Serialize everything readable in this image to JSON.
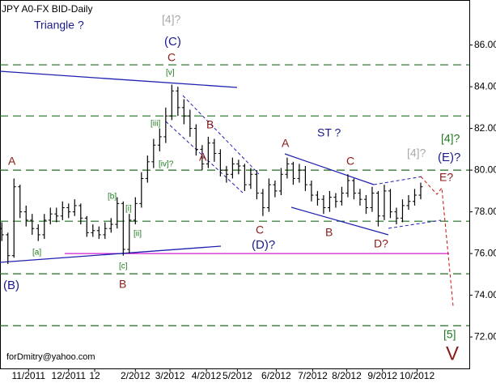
{
  "chart_data": {
    "type": "ohlc",
    "title": "JPY A0-FX BID-Daily",
    "footer": "forDmitry@yahoo.com",
    "color": "#000000",
    "xlim": [
      -0.3,
      77
    ],
    "ylim": [
      70.49,
      88.16
    ],
    "yticks": [
      {
        "value": 72,
        "label": "72.00"
      },
      {
        "value": 74,
        "label": "74.00"
      },
      {
        "value": 76,
        "label": "76.00"
      },
      {
        "value": 78,
        "label": "78.00"
      },
      {
        "value": 80,
        "label": "80.00"
      },
      {
        "value": 82,
        "label": "82.00"
      },
      {
        "value": 84,
        "label": "84.00"
      },
      {
        "value": 86,
        "label": "86.00"
      }
    ],
    "xticks": [
      {
        "value": 4.4,
        "label": "11/2011"
      },
      {
        "value": 11,
        "label": "12/2011"
      },
      {
        "value": 15.3,
        "label": "12"
      },
      {
        "value": 22,
        "label": "2/2012"
      },
      {
        "value": 27.7,
        "label": "3/2012"
      },
      {
        "value": 33.7,
        "label": "4/2012"
      },
      {
        "value": 38.8,
        "label": "5/2012"
      },
      {
        "value": 45.2,
        "label": "6/2012"
      },
      {
        "value": 51.2,
        "label": "7/2012"
      },
      {
        "value": 56.8,
        "label": "8/2012"
      },
      {
        "value": 62.7,
        "label": "9/2012"
      },
      {
        "value": 68.4,
        "label": "10/2012"
      }
    ],
    "levels": [
      85.05,
      82.6,
      80.0,
      77.55,
      75.03,
      72.54
    ],
    "level_color": "#1f6f1f",
    "support_level": 76.0,
    "support_color": "#d020d0",
    "open": [
      77.2,
      76.9,
      75.9,
      79.2,
      78.0,
      77.6,
      77.2,
      76.9,
      77.6,
      77.9,
      77.8,
      78.2,
      78.0,
      78.3,
      77.7,
      77.0,
      77.1,
      76.9,
      77.2,
      77.4,
      78.4,
      76.2,
      77.6,
      78.4,
      79.6,
      80.4,
      81.2,
      81.6,
      82.6,
      83.8,
      83.0,
      82.6,
      82.0,
      81.0,
      80.3,
      81.3,
      80.8,
      80.0,
      79.8,
      80.3,
      80.2,
      79.3,
      79.8,
      78.9,
      78.2,
      79.3,
      79.0,
      79.8,
      80.3,
      79.6,
      80.0,
      79.3,
      78.8,
      78.6,
      78.2,
      78.7,
      78.5,
      78.9,
      79.5,
      78.9,
      78.6,
      78.2,
      78.9,
      77.8,
      79.0,
      78.0,
      77.7,
      78.3,
      78.5,
      78.8
    ],
    "high": [
      77.5,
      77.0,
      79.6,
      79.3,
      78.3,
      77.9,
      77.4,
      77.9,
      78.2,
      78.2,
      78.5,
      78.4,
      78.6,
      78.4,
      77.8,
      77.4,
      77.3,
      77.5,
      77.7,
      78.7,
      78.5,
      77.9,
      78.7,
      79.9,
      80.7,
      81.5,
      82.0,
      83.0,
      84.1,
      84.0,
      83.4,
      82.9,
      82.2,
      81.2,
      81.6,
      81.5,
      81.0,
      80.2,
      80.6,
      80.5,
      80.3,
      80.1,
      80.0,
      79.1,
      79.6,
      79.5,
      80.1,
      80.6,
      80.4,
      80.3,
      80.2,
      79.5,
      79.0,
      78.8,
      79.0,
      78.9,
      79.2,
      79.8,
      79.6,
      79.1,
      78.8,
      79.2,
      79.0,
      79.3,
      79.1,
      78.2,
      78.6,
      78.8,
      79.1,
      79.4
    ],
    "low": [
      76.6,
      75.5,
      75.8,
      77.7,
      77.3,
      76.9,
      76.6,
      76.7,
      77.4,
      77.5,
      77.6,
      77.7,
      77.8,
      77.4,
      76.8,
      76.8,
      76.7,
      76.7,
      77.0,
      77.2,
      75.9,
      76.0,
      77.4,
      78.2,
      79.4,
      80.1,
      80.9,
      81.3,
      82.4,
      82.6,
      82.2,
      81.6,
      80.7,
      80.0,
      80.1,
      80.4,
      79.7,
      79.4,
      79.6,
      79.8,
      79.0,
      79.1,
      78.6,
      77.8,
      78.0,
      78.7,
      78.8,
      79.6,
      79.3,
      79.4,
      79.0,
      78.5,
      78.3,
      77.9,
      78.0,
      78.2,
      78.3,
      78.7,
      78.6,
      78.3,
      77.9,
      78.0,
      77.3,
      77.6,
      77.7,
      77.4,
      77.5,
      78.1,
      78.3,
      78.6
    ],
    "close": [
      76.9,
      75.9,
      79.2,
      78.0,
      77.6,
      77.2,
      76.9,
      77.6,
      77.9,
      77.8,
      78.2,
      78.0,
      78.3,
      77.7,
      77.0,
      77.1,
      76.9,
      77.2,
      77.4,
      78.4,
      76.2,
      77.6,
      78.4,
      79.6,
      80.4,
      81.2,
      81.6,
      82.6,
      83.8,
      83.0,
      82.6,
      82.0,
      81.0,
      80.3,
      81.3,
      80.8,
      80.0,
      79.8,
      80.3,
      80.2,
      79.3,
      79.8,
      78.9,
      78.2,
      79.3,
      79.0,
      79.8,
      80.3,
      79.6,
      80.0,
      79.3,
      78.8,
      78.6,
      78.2,
      78.7,
      78.5,
      78.9,
      79.5,
      78.9,
      78.6,
      78.2,
      78.9,
      77.8,
      79.0,
      78.0,
      77.7,
      78.3,
      78.5,
      78.8,
      79.2
    ],
    "annotations": [
      {
        "text": "Triangle ?",
        "color": "#1a1a8c"
      },
      {
        "text": "[4]?",
        "color": "#a8a8a8"
      },
      {
        "text": "(C)",
        "color": "#1a1a8c"
      },
      {
        "text": "C",
        "color": "#8b1a1a"
      },
      {
        "text": "[v]",
        "color": "#1f7a1f"
      },
      {
        "text": "[iii]",
        "color": "#1f7a1f"
      },
      {
        "text": "[iv]?",
        "color": "#1f7a1f"
      },
      {
        "text": "B",
        "color": "#8b1a1a"
      },
      {
        "text": "A",
        "color": "#8b1a1a"
      },
      {
        "text": "A",
        "color": "#8b1a1a"
      },
      {
        "text": "[b]",
        "color": "#1f7a1f"
      },
      {
        "text": "[i]",
        "color": "#1f7a1f"
      },
      {
        "text": "[ii]",
        "color": "#1f7a1f"
      },
      {
        "text": "[a]",
        "color": "#1f7a1f"
      },
      {
        "text": "[c]",
        "color": "#1f7a1f"
      },
      {
        "text": "B",
        "color": "#8b1a1a"
      },
      {
        "text": "(B)",
        "color": "#1a1a8c"
      },
      {
        "text": "ST ?",
        "color": "#1a1a8c"
      },
      {
        "text": "A",
        "color": "#8b1a1a"
      },
      {
        "text": "C",
        "color": "#8b1a1a"
      },
      {
        "text": "[4]?",
        "color": "#a8a8a8"
      },
      {
        "text": "[4]?",
        "color": "#1f7a1f"
      },
      {
        "text": "(E)?",
        "color": "#1a1a8c"
      },
      {
        "text": "E?",
        "color": "#8b1a1a"
      },
      {
        "text": "C",
        "color": "#8b1a1a"
      },
      {
        "text": "(D)?",
        "color": "#1a1a8c"
      },
      {
        "text": "B",
        "color": "#8b1a1a"
      },
      {
        "text": "D?",
        "color": "#8b1a1a"
      },
      {
        "text": "[5]",
        "color": "#1f7a1f"
      },
      {
        "text": "V",
        "color": "#8b1a1a"
      }
    ]
  }
}
